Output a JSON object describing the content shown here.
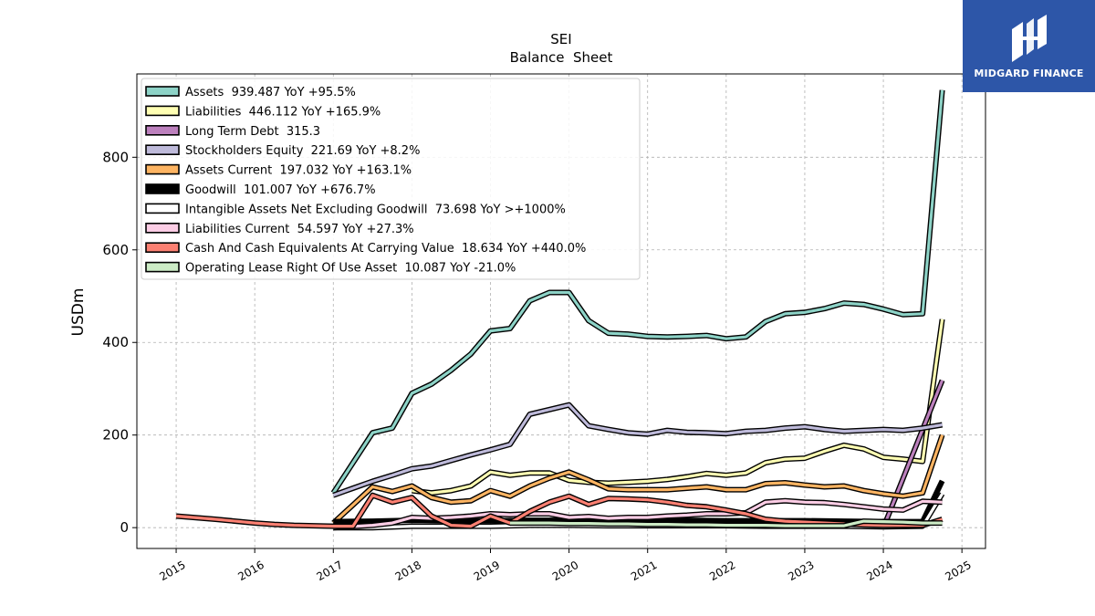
{
  "logo": {
    "text": "MIDGARD FINANCE",
    "background": "#2d56a8"
  },
  "chart_data": {
    "type": "line",
    "title": "SEI",
    "subtitle": "Balance  Sheet",
    "ylabel": "USDm",
    "xlabel": "",
    "xlim": [
      2014.5,
      2025.3
    ],
    "ylim": [
      -45,
      980
    ],
    "x_ticks": [
      2015,
      2016,
      2017,
      2018,
      2019,
      2020,
      2021,
      2022,
      2023,
      2024,
      2025
    ],
    "x_tick_labels": [
      "2015",
      "2016",
      "2017",
      "2018",
      "2019",
      "2020",
      "2021",
      "2022",
      "2023",
      "2024",
      "2025"
    ],
    "y_ticks": [
      0,
      200,
      400,
      600,
      800
    ],
    "y_tick_labels": [
      "0",
      "200",
      "400",
      "600",
      "800"
    ],
    "grid": true,
    "legend_position": "top-left",
    "series": [
      {
        "name": "Assets",
        "legend": "Assets  939.487 YoY +95.5%",
        "color": "#8dd3c7",
        "x": [
          2017.0,
          2017.5,
          2017.75,
          2018.0,
          2018.25,
          2018.5,
          2018.75,
          2019.0,
          2019.25,
          2019.5,
          2019.75,
          2020.0,
          2020.25,
          2020.5,
          2020.75,
          2021.0,
          2021.25,
          2021.5,
          2021.75,
          2022.0,
          2022.25,
          2022.5,
          2022.75,
          2023.0,
          2023.25,
          2023.5,
          2023.75,
          2024.0,
          2024.25,
          2024.5,
          2024.75
        ],
        "y": [
          75,
          205,
          215,
          290,
          310,
          340,
          375,
          425,
          430,
          490,
          508,
          508,
          447,
          420,
          418,
          413,
          412,
          413,
          415,
          408,
          412,
          445,
          462,
          465,
          473,
          485,
          482,
          472,
          460,
          462,
          945
        ]
      },
      {
        "name": "Liabilities",
        "legend": "Liabilities  446.112 YoY +165.9%",
        "color": "#ffffb3",
        "x": [
          2018.0,
          2018.25,
          2018.5,
          2018.75,
          2019.0,
          2019.25,
          2019.5,
          2019.75,
          2020.0,
          2020.25,
          2020.5,
          2020.75,
          2021.0,
          2021.25,
          2021.5,
          2021.75,
          2022.0,
          2022.25,
          2022.5,
          2022.75,
          2023.0,
          2023.25,
          2023.5,
          2023.75,
          2024.0,
          2024.25,
          2024.5,
          2024.75
        ],
        "y": [
          80,
          75,
          80,
          90,
          120,
          113,
          118,
          118,
          102,
          98,
          96,
          98,
          100,
          104,
          110,
          117,
          113,
          118,
          140,
          148,
          150,
          165,
          178,
          170,
          152,
          148,
          143,
          450
        ]
      },
      {
        "name": "Long Term Debt",
        "legend": "Long Term Debt  315.3",
        "color": "#bc80bd",
        "x": [
          2024.0,
          2024.75
        ],
        "y": [
          0,
          318
        ]
      },
      {
        "name": "Stockholders Equity",
        "legend": "Stockholders Equity  221.69 YoY +8.2%",
        "color": "#bebada",
        "x": [
          2017.0,
          2017.25,
          2017.5,
          2017.75,
          2018.0,
          2018.25,
          2018.5,
          2018.75,
          2019.0,
          2019.25,
          2019.5,
          2019.75,
          2020.0,
          2020.25,
          2020.5,
          2020.75,
          2021.0,
          2021.25,
          2021.5,
          2021.75,
          2022.0,
          2022.25,
          2022.5,
          2022.75,
          2023.0,
          2023.25,
          2023.5,
          2023.75,
          2024.0,
          2024.25,
          2024.5,
          2024.75
        ],
        "y": [
          70,
          85,
          100,
          113,
          127,
          133,
          145,
          157,
          168,
          180,
          245,
          255,
          265,
          220,
          212,
          205,
          202,
          210,
          206,
          205,
          203,
          208,
          210,
          215,
          218,
          212,
          208,
          210,
          212,
          210,
          215,
          222
        ]
      },
      {
        "name": "Assets Current",
        "legend": "Assets Current  197.032 YoY +163.1%",
        "color": "#fdb462",
        "x": [
          2017.0,
          2017.5,
          2017.75,
          2018.0,
          2018.25,
          2018.5,
          2018.75,
          2019.0,
          2019.25,
          2019.5,
          2019.75,
          2020.0,
          2020.25,
          2020.5,
          2020.75,
          2021.0,
          2021.25,
          2021.5,
          2021.75,
          2022.0,
          2022.25,
          2022.5,
          2022.75,
          2023.0,
          2023.25,
          2023.5,
          2023.75,
          2024.0,
          2024.25,
          2024.5,
          2024.75
        ],
        "y": [
          10,
          88,
          78,
          90,
          65,
          55,
          58,
          80,
          68,
          90,
          107,
          120,
          103,
          84,
          82,
          82,
          82,
          85,
          88,
          82,
          82,
          95,
          97,
          92,
          88,
          90,
          80,
          73,
          68,
          75,
          200
        ]
      },
      {
        "name": "Goodwill",
        "legend": "Goodwill  101.007 YoY +676.7%",
        "color": "#000000",
        "x": [
          2017.0,
          2017.5,
          2018.0,
          2018.5,
          2019.0,
          2019.5,
          2020.0,
          2020.5,
          2021.0,
          2021.5,
          2022.0,
          2022.5,
          2023.0,
          2023.5,
          2024.0,
          2024.5,
          2024.75
        ],
        "y": [
          13,
          14,
          16,
          15,
          15,
          16,
          16,
          14,
          14,
          16,
          15,
          15,
          15,
          14,
          13,
          13,
          101
        ]
      },
      {
        "name": "Intangible Assets Net Excluding Goodwill",
        "legend": "Intangible Assets Net Excluding Goodwill  73.698 YoY >+1000%",
        "color": "#ffffff",
        "x": [
          2017.0,
          2017.5,
          2018.0,
          2018.5,
          2019.0,
          2019.5,
          2020.0,
          2020.5,
          2021.0,
          2021.5,
          2022.0,
          2022.5,
          2023.0,
          2023.5,
          2024.0,
          2024.5,
          2024.75
        ],
        "y": [
          0,
          0,
          3,
          3,
          3,
          5,
          5,
          4,
          4,
          4,
          4,
          3,
          3,
          3,
          2,
          3,
          73
        ]
      },
      {
        "name": "Liabilities Current",
        "legend": "Liabilities Current  54.597 YoY +27.3%",
        "color": "#fccde5",
        "x": [
          2017.0,
          2017.5,
          2017.75,
          2018.0,
          2018.25,
          2018.5,
          2018.75,
          2019.0,
          2019.25,
          2019.5,
          2019.75,
          2020.0,
          2020.25,
          2020.5,
          2020.75,
          2021.0,
          2021.25,
          2021.5,
          2021.75,
          2022.0,
          2022.25,
          2022.5,
          2022.75,
          2023.0,
          2023.25,
          2023.5,
          2023.75,
          2024.0,
          2024.25,
          2024.5,
          2024.75
        ],
        "y": [
          0,
          5,
          10,
          22,
          20,
          22,
          25,
          30,
          28,
          30,
          30,
          22,
          24,
          20,
          22,
          22,
          25,
          27,
          30,
          30,
          32,
          55,
          58,
          55,
          54,
          50,
          45,
          40,
          38,
          57,
          55
        ]
      },
      {
        "name": "Cash And Cash Equivalents At Carrying Value",
        "legend": "Cash And Cash Equivalents At Carrying Value  18.634 YoY +440.0%",
        "color": "#fb8072",
        "x": [
          2015.0,
          2015.5,
          2016.0,
          2016.25,
          2016.5,
          2016.75,
          2017.0,
          2017.25,
          2017.5,
          2017.75,
          2018.0,
          2018.25,
          2018.5,
          2018.75,
          2019.0,
          2019.25,
          2019.5,
          2019.75,
          2020.0,
          2020.25,
          2020.5,
          2020.75,
          2021.0,
          2021.25,
          2021.5,
          2021.75,
          2022.0,
          2022.25,
          2022.5,
          2022.75,
          2023.0,
          2023.25,
          2023.5,
          2023.75,
          2024.0,
          2024.25,
          2024.5,
          2024.75
        ],
        "y": [
          25,
          18,
          10,
          7,
          5,
          4,
          3,
          3,
          70,
          55,
          65,
          25,
          5,
          3,
          25,
          10,
          35,
          55,
          68,
          50,
          63,
          62,
          60,
          55,
          48,
          45,
          38,
          30,
          18,
          14,
          12,
          10,
          8,
          6,
          5,
          5,
          5,
          18
        ]
      },
      {
        "name": "Operating Lease Right Of Use Asset",
        "legend": "Operating Lease Right Of Use Asset  10.087 YoY -21.0%",
        "color": "#ccebc5",
        "x": [
          2019.25,
          2019.5,
          2019.75,
          2020.0,
          2020.25,
          2020.5,
          2020.75,
          2021.0,
          2021.25,
          2021.5,
          2021.75,
          2022.0,
          2022.25,
          2022.5,
          2022.75,
          2023.0,
          2023.25,
          2023.5,
          2023.75,
          2024.0,
          2024.25,
          2024.5,
          2024.75
        ],
        "y": [
          10,
          10,
          10,
          9,
          9,
          8,
          8,
          7,
          7,
          6,
          6,
          5,
          5,
          5,
          4,
          4,
          4,
          4,
          14,
          13,
          12,
          10,
          10
        ]
      }
    ]
  }
}
